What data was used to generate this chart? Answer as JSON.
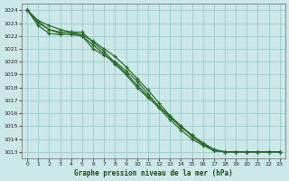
{
  "title": "Graphe pression niveau de la mer (hPa)",
  "bg_color": "#cce8e8",
  "grid_color": "#99cccc",
  "line_color": "#2d6b2d",
  "xlim": [
    -0.5,
    23.5
  ],
  "ylim": [
    1012.5,
    1024.5
  ],
  "xticks": [
    0,
    1,
    2,
    3,
    4,
    5,
    6,
    7,
    8,
    9,
    10,
    11,
    12,
    13,
    14,
    15,
    16,
    17,
    18,
    19,
    20,
    21,
    22,
    23
  ],
  "yticks": [
    1013,
    1014,
    1015,
    1016,
    1017,
    1018,
    1019,
    1020,
    1021,
    1022,
    1023,
    1024
  ],
  "series": [
    [
      1024.0,
      1022.8,
      1022.2,
      1022.1,
      1022.2,
      1022.0,
      1021.3,
      1020.6,
      1019.8,
      1019.0,
      1018.0,
      1017.2,
      1016.5,
      1015.8,
      1015.0,
      1014.3,
      1013.6,
      1013.1,
      1013.0,
      1013.0,
      1013.0,
      1013.0,
      1013.0,
      1013.0
    ],
    [
      1024.0,
      1023.0,
      1022.5,
      1022.2,
      1022.1,
      1022.0,
      1021.0,
      1020.5,
      1020.0,
      1019.3,
      1018.5,
      1017.5,
      1016.5,
      1015.7,
      1014.9,
      1014.3,
      1013.7,
      1013.2,
      1013.0,
      1013.0,
      1013.0,
      1013.0,
      1013.0,
      1013.0
    ],
    [
      1024.0,
      1023.1,
      1022.5,
      1022.3,
      1022.3,
      1022.3,
      1021.5,
      1020.8,
      1019.9,
      1019.1,
      1018.2,
      1017.3,
      1016.4,
      1015.5,
      1014.7,
      1014.0,
      1013.5,
      1013.1,
      1013.0,
      1013.0,
      1013.0,
      1013.0,
      1013.0,
      1013.0
    ],
    [
      1024.0,
      1023.2,
      1022.8,
      1022.5,
      1022.3,
      1022.1,
      1021.6,
      1021.0,
      1020.4,
      1019.6,
      1018.7,
      1017.8,
      1016.8,
      1015.8,
      1015.0,
      1014.2,
      1013.6,
      1013.1,
      1013.0,
      1013.0,
      1013.0,
      1013.0,
      1013.0,
      1013.0
    ]
  ]
}
